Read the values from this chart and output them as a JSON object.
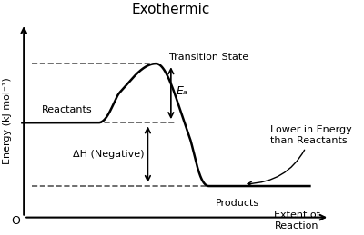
{
  "title": "Exothermic",
  "xlabel": "Extent of\nReaction",
  "ylabel": "Energy (kJ mol⁻¹)",
  "reactant_energy": 0.52,
  "product_energy": 0.22,
  "transition_energy": 0.8,
  "background_color": "#ffffff",
  "line_color": "#000000",
  "dashed_color": "#555555",
  "annotations": {
    "reactants": "Reactants",
    "products": "Products",
    "transition": "Transition State",
    "ea": "Eₐ",
    "dh": "ΔH (Negative)",
    "lower": "Lower in Energy\nthan Reactants"
  },
  "title_fontsize": 11,
  "label_fontsize": 8,
  "annot_fontsize": 8
}
